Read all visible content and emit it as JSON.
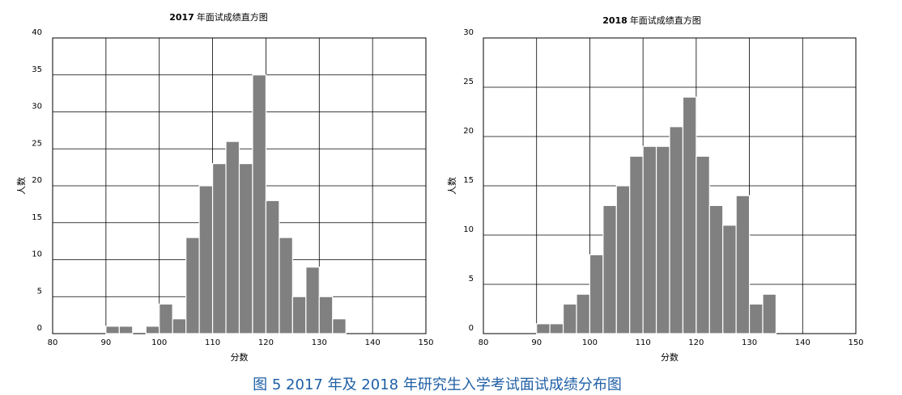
{
  "figure_caption": "图 5 2017 年及 2018 年研究生入学考试面试成绩分布图",
  "chart_data": [
    {
      "type": "bar",
      "title_year": "2017",
      "title_text": "年面试成绩直方图",
      "xlabel": "分数",
      "ylabel": "人数",
      "xlim": [
        80,
        150
      ],
      "ylim": [
        0,
        40
      ],
      "x_ticks": [
        "80",
        "90",
        "100",
        "110",
        "120",
        "130",
        "140",
        "150"
      ],
      "y_ticks": [
        "0",
        "5",
        "10",
        "15",
        "20",
        "25",
        "30",
        "35",
        "40"
      ],
      "grid": true,
      "bin_width": 2.5,
      "bins": [
        {
          "x": 87.5,
          "value": 0
        },
        {
          "x": 90,
          "value": 1
        },
        {
          "x": 92.5,
          "value": 1
        },
        {
          "x": 95,
          "value": 0
        },
        {
          "x": 97.5,
          "value": 1
        },
        {
          "x": 100,
          "value": 4
        },
        {
          "x": 102.5,
          "value": 2
        },
        {
          "x": 105,
          "value": 13
        },
        {
          "x": 107.5,
          "value": 20
        },
        {
          "x": 110,
          "value": 23
        },
        {
          "x": 112.5,
          "value": 26
        },
        {
          "x": 115,
          "value": 23
        },
        {
          "x": 117.5,
          "value": 35
        },
        {
          "x": 120,
          "value": 18
        },
        {
          "x": 122.5,
          "value": 13
        },
        {
          "x": 125,
          "value": 5
        },
        {
          "x": 127.5,
          "value": 9
        },
        {
          "x": 130,
          "value": 5
        },
        {
          "x": 132.5,
          "value": 2
        }
      ]
    },
    {
      "type": "bar",
      "title_year": "2018",
      "title_text": "年面试成绩直方图",
      "xlabel": "分数",
      "ylabel": "人数",
      "xlim": [
        80,
        150
      ],
      "ylim": [
        0,
        30
      ],
      "x_ticks": [
        "80",
        "90",
        "100",
        "110",
        "120",
        "130",
        "140",
        "150"
      ],
      "y_ticks": [
        "0",
        "5",
        "10",
        "15",
        "20",
        "25",
        "30"
      ],
      "grid": true,
      "bin_width": 2.5,
      "bins": [
        {
          "x": 90,
          "value": 1
        },
        {
          "x": 92.5,
          "value": 1
        },
        {
          "x": 95,
          "value": 3
        },
        {
          "x": 97.5,
          "value": 4
        },
        {
          "x": 100,
          "value": 8
        },
        {
          "x": 102.5,
          "value": 13
        },
        {
          "x": 105,
          "value": 15
        },
        {
          "x": 107.5,
          "value": 18
        },
        {
          "x": 110,
          "value": 19
        },
        {
          "x": 112.5,
          "value": 19
        },
        {
          "x": 115,
          "value": 21
        },
        {
          "x": 117.5,
          "value": 24
        },
        {
          "x": 120,
          "value": 18
        },
        {
          "x": 122.5,
          "value": 13
        },
        {
          "x": 125,
          "value": 11
        },
        {
          "x": 127.5,
          "value": 14
        },
        {
          "x": 130,
          "value": 3
        },
        {
          "x": 132.5,
          "value": 4
        }
      ]
    }
  ]
}
